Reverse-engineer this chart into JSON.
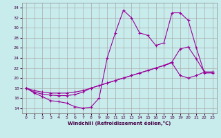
{
  "xlabel": "Windchill (Refroidissement éolien,°C)",
  "bg_color": "#c8ecec",
  "line_color": "#990099",
  "grid_color": "#aaaaaa",
  "ylim": [
    13,
    35
  ],
  "xlim": [
    -0.5,
    23.5
  ],
  "yticks": [
    14,
    16,
    18,
    20,
    22,
    24,
    26,
    28,
    30,
    32,
    34
  ],
  "xticks": [
    0,
    1,
    2,
    3,
    4,
    5,
    6,
    7,
    8,
    9,
    10,
    11,
    12,
    13,
    14,
    15,
    16,
    17,
    18,
    19,
    20,
    21,
    22,
    23
  ],
  "series1_x": [
    0,
    1,
    2,
    3,
    4,
    5,
    6,
    7,
    8,
    9,
    10,
    11,
    12,
    13,
    14,
    15,
    16,
    17,
    18,
    19,
    20,
    21,
    22,
    23
  ],
  "series1_y": [
    18.0,
    17.0,
    16.3,
    15.5,
    15.3,
    15.0,
    14.3,
    14.0,
    14.2,
    16.0,
    24.0,
    29.0,
    33.5,
    32.0,
    29.0,
    28.5,
    26.5,
    27.0,
    33.0,
    33.0,
    31.5,
    26.0,
    21.0,
    21.0
  ],
  "series2_x": [
    0,
    1,
    2,
    3,
    4,
    5,
    6,
    7,
    8,
    9,
    10,
    11,
    12,
    13,
    14,
    15,
    16,
    17,
    18,
    19,
    20,
    21,
    22,
    23
  ],
  "series2_y": [
    18.0,
    17.2,
    16.8,
    16.6,
    16.5,
    16.5,
    16.7,
    17.2,
    18.0,
    18.5,
    19.0,
    19.5,
    20.0,
    20.5,
    21.0,
    21.5,
    22.0,
    22.5,
    23.2,
    25.8,
    26.2,
    23.8,
    21.2,
    21.2
  ],
  "series3_x": [
    0,
    1,
    2,
    3,
    4,
    5,
    6,
    7,
    8,
    9,
    10,
    11,
    12,
    13,
    14,
    15,
    16,
    17,
    18,
    19,
    20,
    21,
    22,
    23
  ],
  "series3_y": [
    18.0,
    17.5,
    17.2,
    17.0,
    17.0,
    17.0,
    17.2,
    17.5,
    18.0,
    18.5,
    19.0,
    19.5,
    20.0,
    20.5,
    21.0,
    21.5,
    22.0,
    22.5,
    23.0,
    20.5,
    20.0,
    20.5,
    21.2,
    21.2
  ]
}
